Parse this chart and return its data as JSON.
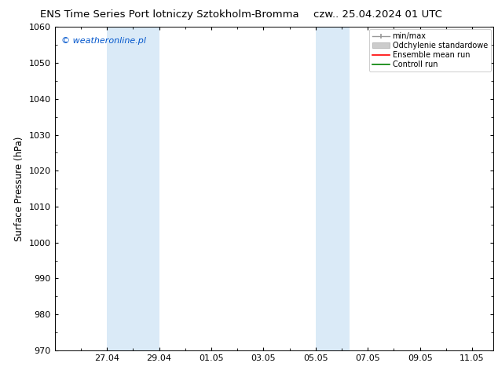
{
  "title_left": "ENS Time Series Port lotniczy Sztokholm-Bromma",
  "title_right": "czw.. 25.04.2024 01 UTC",
  "ylabel": "Surface Pressure (hPa)",
  "ylim": [
    970,
    1060
  ],
  "yticks": [
    970,
    980,
    990,
    1000,
    1010,
    1020,
    1030,
    1040,
    1050,
    1060
  ],
  "xtick_labels": [
    "27.04",
    "29.04",
    "01.05",
    "03.05",
    "05.05",
    "07.05",
    "09.05",
    "11.05"
  ],
  "shaded_color": "#daeaf7",
  "copyright_text": "© weatheronline.pl",
  "copyright_color": "#0055cc",
  "legend_labels": [
    "min/max",
    "Odchylenie standardowe",
    "Ensemble mean run",
    "Controll run"
  ],
  "legend_colors": [
    "#aaaaaa",
    "#cccccc",
    "red",
    "green"
  ],
  "bg_color": "#ffffff",
  "plot_bg_color": "#ffffff",
  "title_fontsize": 9.5,
  "ylabel_fontsize": 8.5,
  "tick_fontsize": 8
}
